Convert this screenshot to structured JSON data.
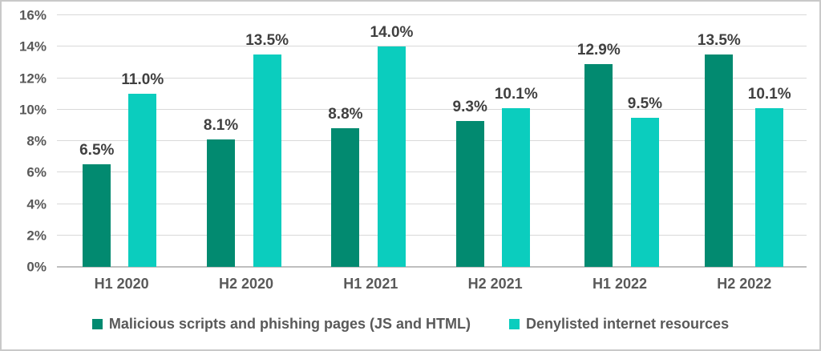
{
  "chart_data": {
    "type": "bar",
    "title": "",
    "xlabel": "",
    "ylabel": "",
    "categories": [
      "H1 2020",
      "H2 2020",
      "H1 2021",
      "H2 2021",
      "H1 2022",
      "H2 2022"
    ],
    "series": [
      {
        "name": "Malicious scripts and phishing pages (JS and HTML)",
        "color": "#028A70",
        "values": [
          6.5,
          8.1,
          8.8,
          9.3,
          12.9,
          13.5
        ],
        "labels": [
          "6.5%",
          "8.1%",
          "8.8%",
          "9.3%",
          "12.9%",
          "13.5%"
        ]
      },
      {
        "name": "Denylisted internet resources",
        "color": "#0BCDBE",
        "values": [
          11.0,
          13.5,
          14.0,
          10.1,
          9.5,
          10.1
        ],
        "labels": [
          "11.0%",
          "13.5%",
          "14.0%",
          "10.1%",
          "9.5%",
          "10.1%"
        ]
      }
    ],
    "ylim": [
      0,
      16
    ],
    "ytick_step": 2,
    "yticks": [
      "0%",
      "2%",
      "4%",
      "6%",
      "8%",
      "10%",
      "12%",
      "14%",
      "16%"
    ],
    "grid": "horizontal",
    "legend_position": "bottom",
    "data_labels": true
  },
  "colors": {
    "background": "#FFFFFF",
    "frame_border": "#C9C9C9",
    "gridline": "#D9D9D9",
    "axis_line": "#BFBFBF",
    "tick_text": "#595959",
    "data_label_text": "#404040",
    "series1": "#028A70",
    "series2": "#0BCDBE"
  }
}
